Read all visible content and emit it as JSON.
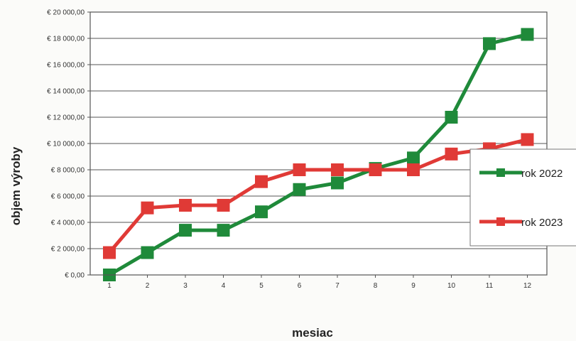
{
  "chart_data": {
    "type": "line",
    "categories": [
      "1",
      "2",
      "3",
      "4",
      "5",
      "6",
      "7",
      "8",
      "9",
      "10",
      "11",
      "12"
    ],
    "series": [
      {
        "name": "rok 2022",
        "color": "#1f8a3a",
        "values": [
          0,
          1700,
          3400,
          3400,
          4800,
          6500,
          7000,
          8100,
          8900,
          12000,
          17600,
          18300
        ]
      },
      {
        "name": "rok 2023",
        "color": "#e03a36",
        "values": [
          1700,
          5100,
          5300,
          5300,
          7100,
          8000,
          8000,
          8000,
          8000,
          9200,
          9600,
          10300
        ]
      }
    ],
    "ylim": [
      0,
      20000
    ],
    "ytick_values": [
      0,
      2000,
      4000,
      6000,
      8000,
      10000,
      12000,
      14000,
      16000,
      18000,
      20000
    ],
    "ytick_labels": [
      "€ 0,00",
      "€ 2 000,00",
      "€ 4 000,00",
      "€ 6 000,00",
      "€ 8 000,00",
      "€ 10 000,00",
      "€ 12 000,00",
      "€ 14 000,00",
      "€ 16 000,00",
      "€ 18 000,00",
      "€ 20 000,00"
    ],
    "xlabel": "mesiac",
    "ylabel": "objem výroby",
    "grid": true,
    "legend": "right"
  }
}
